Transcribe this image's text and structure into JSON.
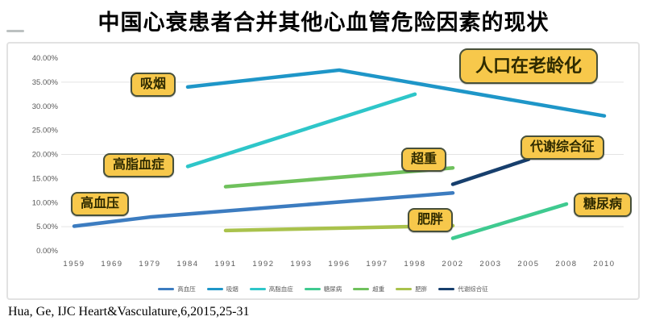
{
  "page": {
    "title": "中国心衰患者合并其他心血管危险因素的现状",
    "citation": "Hua, Ge, IJC Heart&Vasculature,6,2015,25-31"
  },
  "chart_data": {
    "type": "line",
    "title": "中国心衰患者合并其他心血管危险因素的现状",
    "categories": [
      "1959",
      "1969",
      "1979",
      "1984",
      "1991",
      "1992",
      "1993",
      "1996",
      "1997",
      "1998",
      "2002",
      "2003",
      "2005",
      "2008",
      "2010"
    ],
    "y_axis": {
      "min": 0,
      "max": 40,
      "step": 5,
      "format": "percent",
      "tick_labels": [
        "0.00%",
        "5.00%",
        "10.00%",
        "15.00%",
        "20.00%",
        "25.00%",
        "30.00%",
        "35.00%",
        "40.00%"
      ]
    },
    "gridlines_at": [
      5,
      20,
      35
    ],
    "legend_position": "bottom",
    "series": [
      {
        "key": "hypertension",
        "name": "高血压",
        "color": "#3c7cc0",
        "points": [
          [
            "1959",
            5.1
          ],
          [
            "1979",
            7.0
          ],
          [
            "2002",
            12.0
          ]
        ]
      },
      {
        "key": "smoking",
        "name": "吸烟",
        "color": "#1e96c8",
        "points": [
          [
            "1984",
            34.0
          ],
          [
            "1996",
            37.5
          ],
          [
            "2010",
            28.0
          ]
        ]
      },
      {
        "key": "hyperlipidemia",
        "name": "高脂血症",
        "color": "#2ec6c9",
        "points": [
          [
            "1984",
            17.5
          ],
          [
            "1998",
            32.5
          ]
        ]
      },
      {
        "key": "diabetes",
        "name": "糖尿病",
        "color": "#3fca90",
        "points": [
          [
            "2002",
            2.6
          ],
          [
            "2008",
            9.7
          ]
        ]
      },
      {
        "key": "overweight",
        "name": "超重",
        "color": "#6fc15c",
        "points": [
          [
            "1991",
            13.3
          ],
          [
            "2002",
            17.2
          ]
        ]
      },
      {
        "key": "obesity",
        "name": "肥胖",
        "color": "#a9c24c",
        "points": [
          [
            "1991",
            4.2
          ],
          [
            "2002",
            5.2
          ]
        ]
      },
      {
        "key": "metabolic-syndrome",
        "name": "代谢综合征",
        "color": "#173f6d",
        "points": [
          [
            "2002",
            13.8
          ],
          [
            "2005",
            19.0
          ]
        ]
      }
    ],
    "annotations": [
      {
        "key": "smoking",
        "label": "吸烟"
      },
      {
        "key": "hyperlipidemia",
        "label": "高脂血症"
      },
      {
        "key": "hypertension",
        "label": "高血压"
      },
      {
        "key": "overweight",
        "label": "超重"
      },
      {
        "key": "obesity",
        "label": "肥胖"
      },
      {
        "key": "diabetes",
        "label": "糖尿病"
      },
      {
        "key": "metabolic",
        "label": "代谢综合征"
      },
      {
        "key": "aging",
        "label": "人口在老龄化"
      }
    ]
  },
  "style": {
    "annotation_bg": "#f7c84b",
    "annotation_border": "#47503b",
    "axis_text_color": "#595959",
    "gridline_color": "#e4e4e4"
  }
}
